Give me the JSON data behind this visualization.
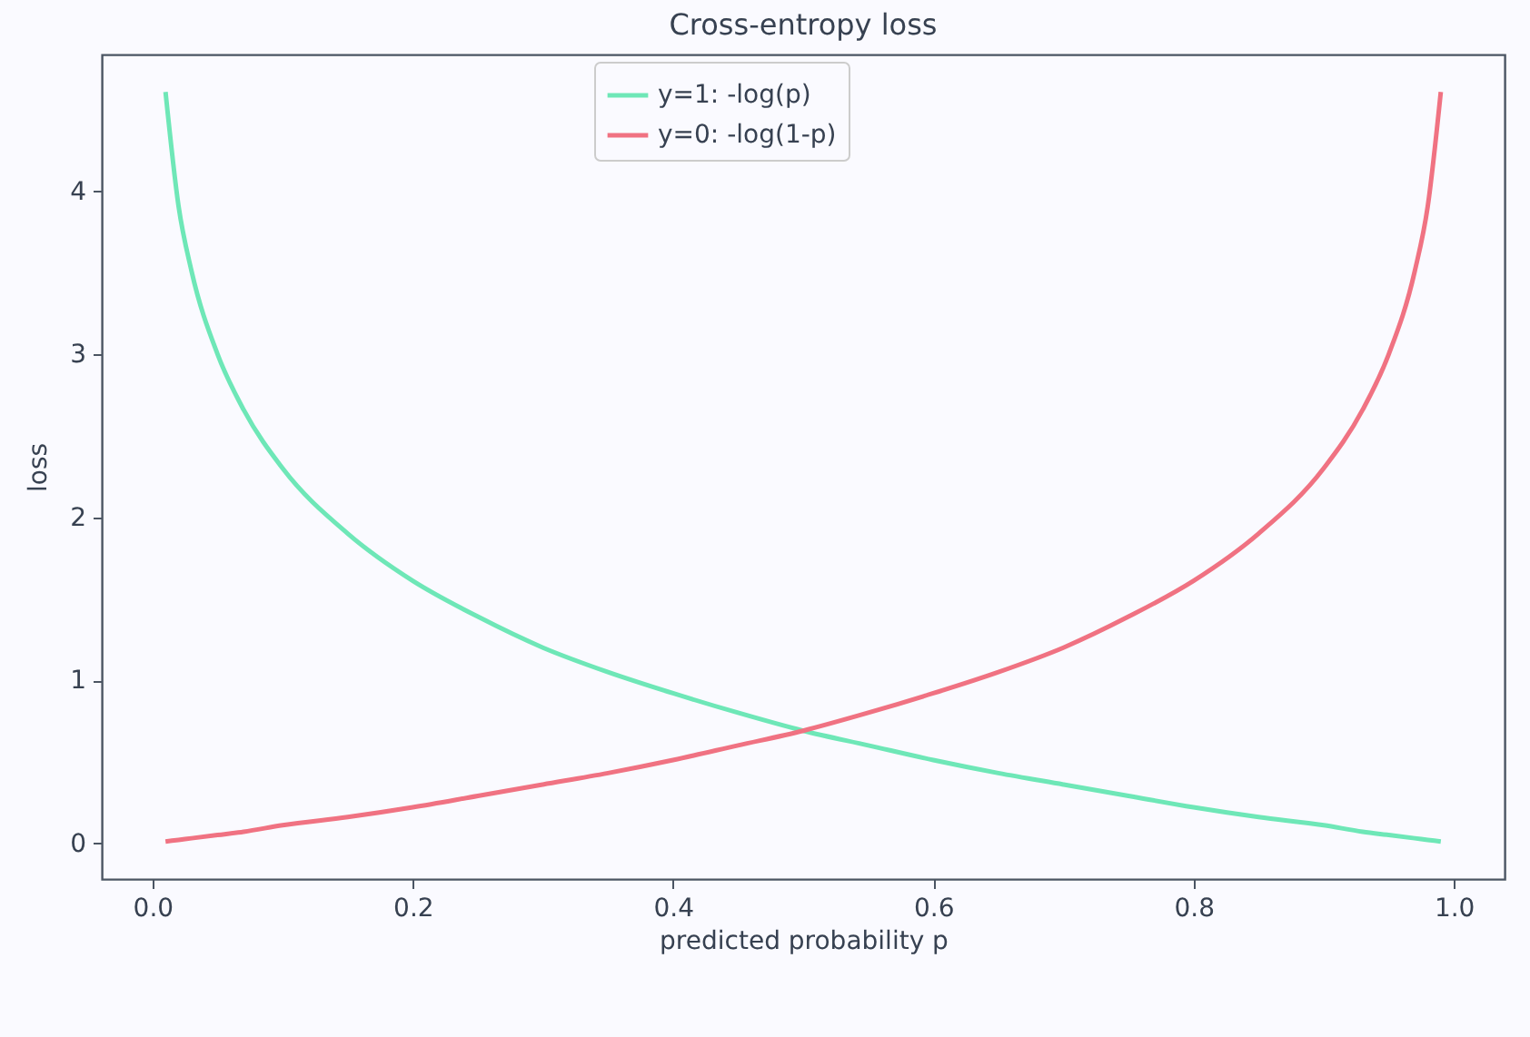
{
  "chart_data": {
    "type": "line",
    "title": "Cross-entropy loss",
    "xlabel": "predicted probability p",
    "ylabel": "loss",
    "x": [
      0.01,
      0.02,
      0.03,
      0.05,
      0.07,
      0.1,
      0.15,
      0.2,
      0.25,
      0.3,
      0.35,
      0.4,
      0.45,
      0.5,
      0.55,
      0.6,
      0.65,
      0.7,
      0.75,
      0.8,
      0.85,
      0.9,
      0.93,
      0.95,
      0.97,
      0.98,
      0.99
    ],
    "series": [
      {
        "name": "y=1: -log(p)",
        "color": "#6ee7b7",
        "values": [
          4.61,
          3.91,
          3.51,
          3.0,
          2.66,
          2.3,
          1.9,
          1.61,
          1.39,
          1.2,
          1.05,
          0.92,
          0.8,
          0.69,
          0.6,
          0.51,
          0.43,
          0.36,
          0.29,
          0.22,
          0.16,
          0.11,
          0.07,
          0.05,
          0.03,
          0.02,
          0.01
        ]
      },
      {
        "name": "y=0: -log(1-p)",
        "color": "#f07282",
        "values": [
          0.01,
          0.02,
          0.03,
          0.05,
          0.07,
          0.11,
          0.16,
          0.22,
          0.29,
          0.36,
          0.43,
          0.51,
          0.6,
          0.69,
          0.8,
          0.92,
          1.05,
          1.2,
          1.39,
          1.61,
          1.9,
          2.3,
          2.66,
          3.0,
          3.51,
          3.91,
          4.61
        ]
      }
    ],
    "xlim": [
      -0.039,
      1.039
    ],
    "ylim": [
      -0.22,
      4.84
    ],
    "xticks": [
      {
        "value": 0,
        "label": "0.0"
      },
      0.2,
      0.4,
      0.6,
      0.8,
      {
        "value": 1,
        "label": "1.0"
      }
    ],
    "yticks": [
      0,
      1,
      2,
      3,
      4
    ],
    "grid": false,
    "legend": "top",
    "line_style": "solid",
    "marker": "none"
  }
}
